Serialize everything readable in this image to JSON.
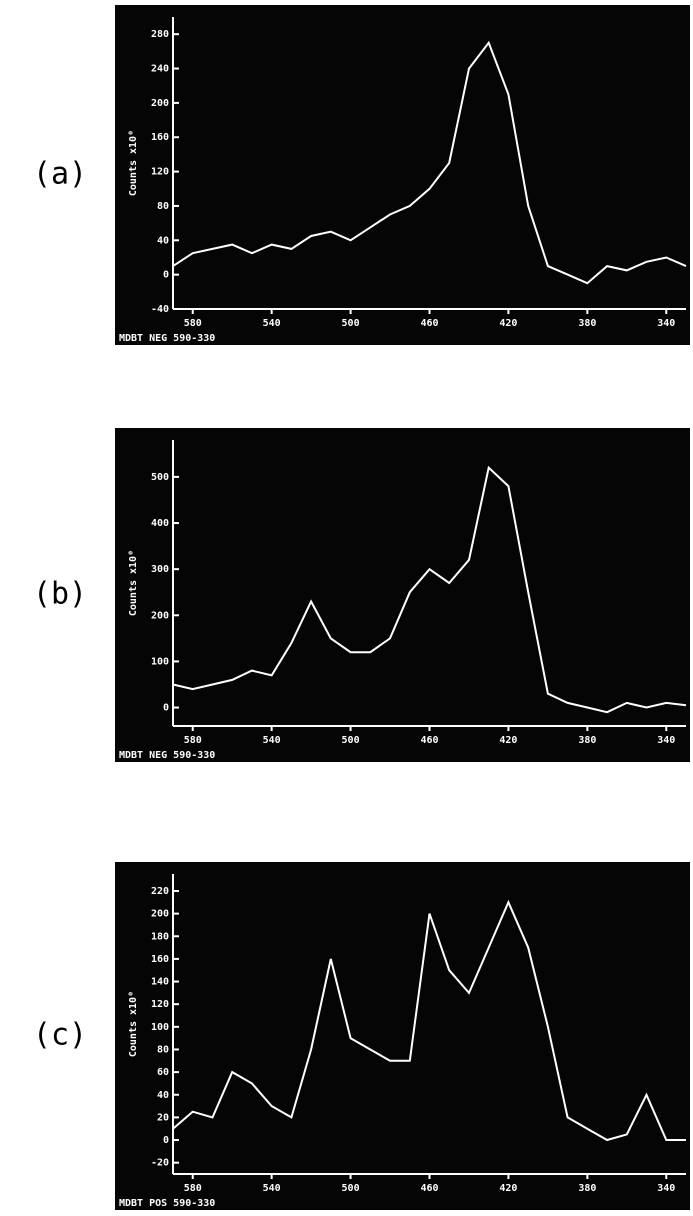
{
  "chart_data": [
    {
      "type": "line",
      "label": "(a)",
      "y_label": "Counts x10⁰",
      "footer": "MDBT NEG 590-330",
      "color": "#ffffff",
      "x": [
        590,
        580,
        570,
        560,
        550,
        540,
        530,
        520,
        510,
        500,
        490,
        480,
        470,
        460,
        450,
        440,
        430,
        420,
        410,
        400,
        390,
        380,
        370,
        360,
        350,
        340,
        330
      ],
      "values": [
        10,
        25,
        30,
        35,
        25,
        35,
        30,
        45,
        50,
        40,
        55,
        70,
        80,
        100,
        130,
        240,
        270,
        210,
        80,
        10,
        0,
        -10,
        10,
        5,
        15,
        20,
        10
      ],
      "xlim": [
        590,
        330
      ],
      "xticks": [
        580,
        540,
        500,
        460,
        420,
        380,
        340
      ],
      "ylim": [
        -40,
        300
      ],
      "yticks": [
        -40,
        0,
        40,
        80,
        120,
        160,
        200,
        240,
        280
      ]
    },
    {
      "type": "line",
      "label": "(b)",
      "y_label": "Counts x10⁰",
      "footer": "MDBT NEG 590-330",
      "color": "#ffffff",
      "x": [
        590,
        580,
        570,
        560,
        550,
        540,
        530,
        520,
        510,
        500,
        490,
        480,
        470,
        460,
        450,
        440,
        430,
        420,
        410,
        400,
        390,
        380,
        370,
        360,
        350,
        340,
        330
      ],
      "values": [
        50,
        40,
        50,
        60,
        80,
        70,
        140,
        230,
        150,
        120,
        120,
        150,
        250,
        300,
        270,
        320,
        520,
        480,
        250,
        30,
        10,
        0,
        -10,
        10,
        0,
        10,
        5
      ],
      "xlim": [
        590,
        330
      ],
      "xticks": [
        580,
        540,
        500,
        460,
        420,
        380,
        340
      ],
      "ylim": [
        -40,
        580
      ],
      "yticks": [
        0,
        100,
        200,
        300,
        400,
        500
      ]
    },
    {
      "type": "line",
      "label": "(c)",
      "y_label": "Counts x10⁰",
      "footer": "MDBT POS 590-330",
      "color": "#ffffff",
      "x": [
        590,
        580,
        570,
        560,
        550,
        540,
        530,
        520,
        510,
        500,
        490,
        480,
        470,
        460,
        450,
        440,
        430,
        420,
        410,
        400,
        390,
        380,
        370,
        360,
        350,
        340,
        330
      ],
      "values": [
        10,
        25,
        20,
        60,
        50,
        30,
        20,
        80,
        160,
        90,
        80,
        70,
        70,
        200,
        150,
        130,
        170,
        210,
        170,
        100,
        20,
        10,
        0,
        5,
        40,
        0,
        0
      ],
      "xlim": [
        590,
        330
      ],
      "xticks": [
        580,
        540,
        500,
        460,
        420,
        380,
        340
      ],
      "ylim": [
        -30,
        235
      ],
      "yticks": [
        -20,
        0,
        20,
        40,
        60,
        80,
        100,
        120,
        140,
        160,
        180,
        200,
        220
      ]
    }
  ]
}
